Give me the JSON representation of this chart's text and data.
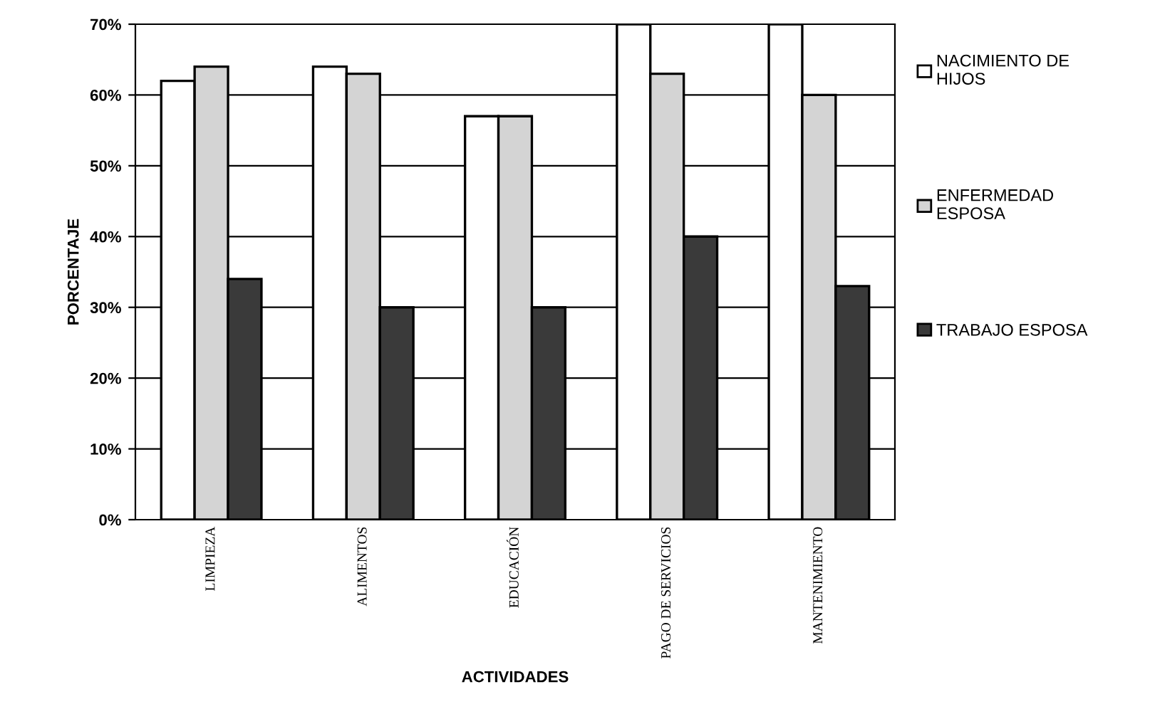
{
  "chart_data": {
    "type": "bar",
    "xlabel": "ACTIVIDADES",
    "ylabel": "PORCENTAJE",
    "categories": [
      "LIMPIEZA",
      "ALIMENTOS",
      "EDUCACIÓN",
      "PAGO DE SERVICIOS",
      "MANTENIMIENTO"
    ],
    "series": [
      {
        "name": "NACIMIENTO DE HIJOS",
        "color": "#ffffff",
        "values": [
          62,
          64,
          57,
          70,
          70
        ]
      },
      {
        "name": "ENFERMEDAD ESPOSA",
        "color": "#d4d4d4",
        "values": [
          64,
          63,
          57,
          63,
          60
        ]
      },
      {
        "name": "TRABAJO ESPOSA",
        "color": "#3a3a3a",
        "values": [
          34,
          30,
          30,
          40,
          33
        ]
      }
    ],
    "ylim": [
      0,
      70
    ],
    "yticks": [
      {
        "value": 0,
        "label": "0%"
      },
      {
        "value": 10,
        "label": "10%"
      },
      {
        "value": 20,
        "label": "20%"
      },
      {
        "value": 30,
        "label": "30%"
      },
      {
        "value": 40,
        "label": "40%"
      },
      {
        "value": 50,
        "label": "50%"
      },
      {
        "value": 60,
        "label": "60%"
      },
      {
        "value": 70,
        "label": "70%"
      }
    ],
    "grid": "y",
    "legend": "right"
  }
}
